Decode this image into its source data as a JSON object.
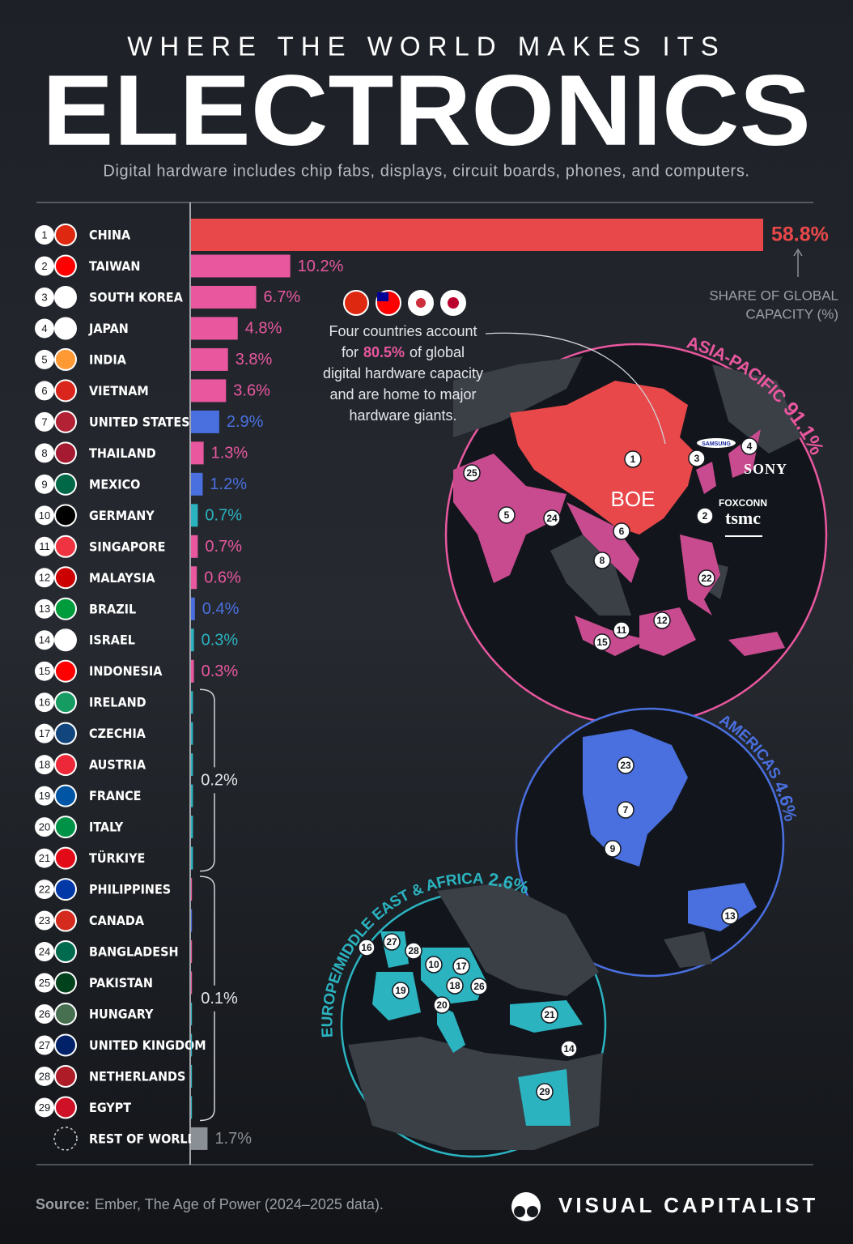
{
  "header": {
    "kicker": "WHERE THE WORLD MAKES ITS",
    "title": "ELECTRONICS",
    "subtitle": "Digital hardware includes chip fabs, displays, circuit boards, phones, and computers."
  },
  "chart_data": {
    "type": "bar",
    "orientation": "horizontal",
    "ranks": [
      "1",
      "2",
      "3",
      "4",
      "5",
      "6",
      "7",
      "8",
      "9",
      "10",
      "11",
      "12",
      "13",
      "14",
      "15",
      "16",
      "17",
      "18",
      "19",
      "20",
      "21",
      "22",
      "23",
      "24",
      "25",
      "26",
      "27",
      "28",
      "29",
      null
    ],
    "categories": [
      "CHINA",
      "TAIWAN",
      "SOUTH KOREA",
      "JAPAN",
      "INDIA",
      "VIETNAM",
      "UNITED STATES",
      "THAILAND",
      "MEXICO",
      "GERMANY",
      "SINGAPORE",
      "MALAYSIA",
      "BRAZIL",
      "ISRAEL",
      "INDONESIA",
      "IRELAND",
      "CZECHIA",
      "AUSTRIA",
      "FRANCE",
      "ITALY",
      "TÜRKIYE",
      "PHILIPPINES",
      "CANADA",
      "BANGLADESH",
      "PAKISTAN",
      "HUNGARY",
      "UNITED KINGDOM",
      "NETHERLANDS",
      "EGYPT",
      "REST OF WORLD"
    ],
    "values": [
      58.8,
      10.2,
      6.7,
      4.8,
      3.8,
      3.6,
      2.9,
      1.3,
      1.2,
      0.7,
      0.7,
      0.6,
      0.4,
      0.3,
      0.3,
      0.2,
      0.2,
      0.2,
      0.2,
      0.2,
      0.2,
      0.1,
      0.1,
      0.1,
      0.1,
      0.1,
      0.1,
      0.1,
      0.1,
      1.7
    ],
    "value_labels": [
      "58.8%",
      "10.2%",
      "6.7%",
      "4.8%",
      "3.8%",
      "3.6%",
      "2.9%",
      "1.3%",
      "1.2%",
      "0.7%",
      "0.7%",
      "0.6%",
      "0.4%",
      "0.3%",
      "0.3%",
      null,
      null,
      null,
      null,
      null,
      null,
      null,
      null,
      null,
      null,
      null,
      null,
      null,
      null,
      "1.7%"
    ],
    "colors": [
      "#e8484a",
      "#e9579f",
      "#e9579f",
      "#e9579f",
      "#e9579f",
      "#e9579f",
      "#4a70e0",
      "#e9579f",
      "#4a70e0",
      "#2bb3c0",
      "#e9579f",
      "#e9579f",
      "#4a70e0",
      "#2bb3c0",
      "#e9579f",
      "#2bb3c0",
      "#2bb3c0",
      "#2bb3c0",
      "#2bb3c0",
      "#2bb3c0",
      "#2bb3c0",
      "#e9579f",
      "#4a70e0",
      "#e9579f",
      "#e9579f",
      "#2bb3c0",
      "#2bb3c0",
      "#2bb3c0",
      "#2bb3c0",
      "#8a8f96"
    ],
    "xlim": [
      0,
      58.8
    ],
    "brackets": [
      {
        "label": "0.2%",
        "value": 0.2,
        "first_rank": 16,
        "last_rank": 21
      },
      {
        "label": "0.1%",
        "value": 0.1,
        "first_rank": 22,
        "last_rank": 29
      }
    ],
    "axis_label": [
      "SHARE OF GLOBAL",
      "CAPACITY (%)"
    ]
  },
  "annotation": {
    "line1": "Four countries account",
    "line2a": "for",
    "highlight": "80.5%",
    "line2b": "of global",
    "line3": "digital hardware capacity",
    "line4": "and are home to major",
    "line5": "hardware giants."
  },
  "regions": [
    {
      "name": "ASIA-PACIFIC",
      "share": "91.1%",
      "markers": [
        "1",
        "3",
        "4",
        "25",
        "5",
        "24",
        "2",
        "6",
        "8",
        "22",
        "12",
        "11",
        "15"
      ]
    },
    {
      "name": "AMERICAS",
      "share": "4.6%",
      "markers": [
        "23",
        "7",
        "9",
        "13"
      ]
    },
    {
      "name": "EUROPE/MIDDLE EAST & AFRICA",
      "share": "2.6%",
      "markers": [
        "16",
        "27",
        "28",
        "10",
        "17",
        "18",
        "26",
        "19",
        "20",
        "21",
        "14",
        "29"
      ]
    }
  ],
  "brands": [
    "SAMSUNG",
    "SONY",
    "BOE",
    "FOXCONN",
    "tsmc"
  ],
  "footer": {
    "source_label": "Source:",
    "source": "Ember, The Age of Power (2024–2025 data).",
    "brand": "VISUAL CAPITALIST"
  }
}
